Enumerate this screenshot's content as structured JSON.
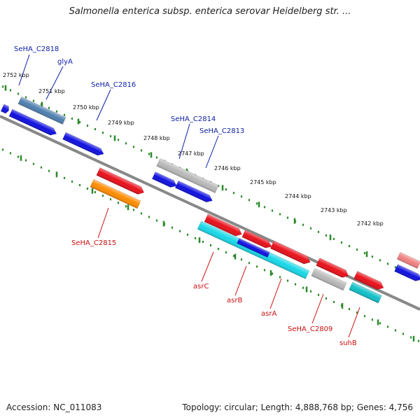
{
  "title": "Salmonella enterica subsp. enterica serovar Heidelberg str. ...",
  "accession": "Accession: NC_011083",
  "topology": "Topology: circular; Length: 4,888,768 bp; Genes: 4,756",
  "colors": {
    "blue": "#1010e0",
    "steelblue": "#4f7fb0",
    "red": "#e8101a",
    "orange": "#ff8c00",
    "gray": "#b8b8b8",
    "cyan": "#18d8e8",
    "teal": "#10c0c8",
    "pink": "#f08080",
    "backbone": "#888888",
    "tick": "#2a8a2a",
    "label_top": "#0b1fa6",
    "label_bottom": "#cc1010"
  },
  "ruler": [
    {
      "label": "2752 kbp"
    },
    {
      "label": "2751 kbp"
    },
    {
      "label": "2750 kbp"
    },
    {
      "label": "2749 kbp"
    },
    {
      "label": "2748 kbp"
    },
    {
      "label": "2747 kbp"
    },
    {
      "label": "2746 kbp"
    },
    {
      "label": "2745 kbp"
    },
    {
      "label": "2744 kbp"
    },
    {
      "label": "2743 kbp"
    },
    {
      "label": "2742 kbp"
    }
  ],
  "genes_top": [
    {
      "name": "SeHA_C2818",
      "color": "steelblue"
    },
    {
      "name": "glyA",
      "color": "steelblue"
    },
    {
      "name": "SeHA_C2816",
      "color": "blue"
    },
    {
      "name": "SeHA_C2814",
      "color": "gray"
    },
    {
      "name": "SeHA_C2813",
      "color": "blue"
    }
  ],
  "genes_bottom": [
    {
      "name": "SeHA_C2815",
      "color": "orange"
    },
    {
      "name": "asrC",
      "color": "cyan"
    },
    {
      "name": "asrB",
      "color": "red"
    },
    {
      "name": "asrA",
      "color": "red"
    },
    {
      "name": "SeHA_C2809",
      "color": "gray"
    },
    {
      "name": "suhB",
      "color": "teal"
    }
  ]
}
